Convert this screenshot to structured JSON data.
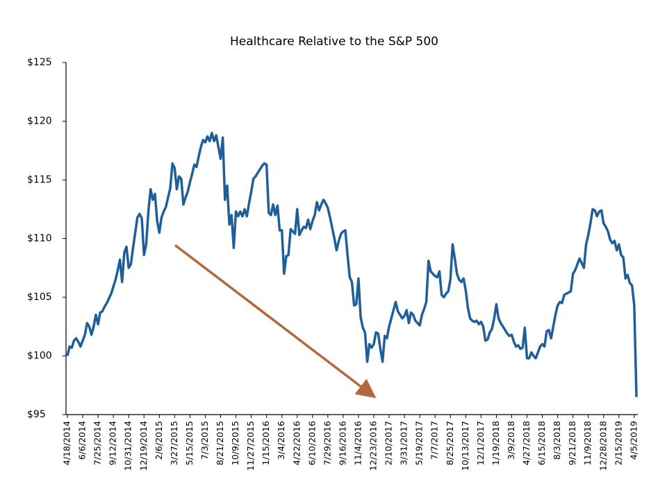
{
  "chart_data": {
    "type": "line",
    "title": "Healthcare Relative to the S&P 500",
    "categories": [
      "4/18/2014",
      null,
      null,
      null,
      null,
      null,
      null,
      "6/6/2014",
      null,
      null,
      null,
      null,
      null,
      null,
      "7/25/2014",
      null,
      null,
      null,
      null,
      null,
      null,
      "9/12/2014",
      null,
      null,
      null,
      null,
      null,
      null,
      "10/31/2014",
      null,
      null,
      null,
      null,
      null,
      null,
      "12/19/2014",
      null,
      null,
      null,
      null,
      null,
      null,
      "2/6/2015",
      null,
      null,
      null,
      null,
      null,
      null,
      "3/27/2015",
      null,
      null,
      null,
      null,
      null,
      null,
      "5/15/2015",
      null,
      null,
      null,
      null,
      null,
      null,
      "7/3/2015",
      null,
      null,
      null,
      null,
      null,
      null,
      "8/21/2015",
      null,
      null,
      null,
      null,
      null,
      null,
      "10/9/2015",
      null,
      null,
      null,
      null,
      null,
      null,
      "11/27/2015",
      null,
      null,
      null,
      null,
      null,
      null,
      "1/15/2016",
      null,
      null,
      null,
      null,
      null,
      null,
      "3/4/2016",
      null,
      null,
      null,
      null,
      null,
      null,
      "4/22/2016",
      null,
      null,
      null,
      null,
      null,
      null,
      "6/10/2016",
      null,
      null,
      null,
      null,
      null,
      null,
      "7/29/2016",
      null,
      null,
      null,
      null,
      null,
      null,
      "9/16/2016",
      null,
      null,
      null,
      null,
      null,
      null,
      "11/4/2016",
      null,
      null,
      null,
      null,
      null,
      null,
      "12/23/2016",
      null,
      null,
      null,
      null,
      null,
      null,
      "2/10/2017",
      null,
      null,
      null,
      null,
      null,
      null,
      "3/31/2017",
      null,
      null,
      null,
      null,
      null,
      null,
      "5/19/2017",
      null,
      null,
      null,
      null,
      null,
      null,
      "7/7/2017",
      null,
      null,
      null,
      null,
      null,
      null,
      "8/25/2017",
      null,
      null,
      null,
      null,
      null,
      null,
      "10/13/2017",
      null,
      null,
      null,
      null,
      null,
      null,
      "12/1/2017",
      null,
      null,
      null,
      null,
      null,
      null,
      "1/19/2018",
      null,
      null,
      null,
      null,
      null,
      null,
      "3/9/2018",
      null,
      null,
      null,
      null,
      null,
      null,
      "4/27/2018",
      null,
      null,
      null,
      null,
      null,
      null,
      "6/15/2018",
      null,
      null,
      null,
      null,
      null,
      null,
      "8/3/2018",
      null,
      null,
      null,
      null,
      null,
      null,
      "9/21/2018",
      null,
      null,
      null,
      null,
      null,
      null,
      "11/9/2018",
      null,
      null,
      null,
      null,
      null,
      null,
      "12/28/2018",
      null,
      null,
      null,
      null,
      null,
      null,
      "2/15/2019",
      null,
      null,
      null,
      null,
      null,
      null,
      "4/5/2019",
      null
    ],
    "values": [
      100.0,
      100.8,
      100.7,
      101.3,
      101.5,
      101.2,
      100.8,
      101.3,
      101.8,
      102.8,
      102.5,
      101.8,
      102.5,
      103.5,
      102.7,
      103.7,
      103.8,
      104.2,
      104.5,
      104.9,
      105.3,
      105.9,
      106.5,
      107.3,
      108.2,
      106.3,
      108.8,
      109.3,
      107.5,
      107.8,
      109.2,
      110.5,
      111.8,
      112.1,
      111.7,
      108.6,
      109.5,
      112.3,
      114.2,
      113.3,
      113.8,
      111.5,
      110.5,
      111.8,
      112.3,
      112.7,
      113.5,
      114.3,
      116.4,
      116.0,
      114.2,
      115.3,
      115.1,
      112.9,
      113.5,
      114.0,
      114.8,
      115.5,
      116.3,
      116.1,
      117.0,
      117.8,
      118.4,
      118.2,
      118.7,
      118.3,
      119.0,
      118.3,
      118.8,
      117.8,
      116.8,
      118.6,
      113.3,
      114.5,
      111.2,
      112.0,
      109.2,
      112.3,
      111.9,
      112.3,
      111.9,
      112.5,
      111.9,
      113.0,
      114.0,
      115.1,
      115.3,
      115.6,
      115.9,
      116.2,
      116.4,
      116.3,
      112.2,
      112.0,
      112.9,
      112.0,
      112.8,
      110.7,
      110.7,
      107.0,
      108.5,
      108.6,
      110.8,
      110.6,
      110.4,
      112.5,
      110.3,
      110.7,
      111.0,
      110.9,
      111.6,
      110.8,
      111.5,
      112.0,
      113.1,
      112.4,
      112.9,
      113.3,
      113.0,
      112.6,
      111.8,
      110.9,
      110.0,
      109.0,
      109.8,
      110.4,
      110.6,
      110.7,
      108.6,
      106.7,
      106.3,
      104.3,
      104.4,
      106.6,
      103.3,
      102.4,
      102.0,
      99.5,
      101.0,
      100.7,
      101.0,
      102.0,
      101.9,
      100.6,
      99.5,
      101.7,
      101.5,
      102.5,
      103.2,
      103.9,
      104.6,
      103.8,
      103.5,
      103.2,
      103.4,
      103.9,
      102.8,
      103.7,
      103.5,
      103.0,
      102.8,
      102.6,
      103.5,
      104.0,
      104.6,
      108.1,
      107.2,
      107.0,
      106.8,
      106.7,
      107.2,
      105.2,
      105.0,
      105.3,
      105.5,
      106.5,
      109.5,
      108.3,
      107.0,
      106.5,
      106.3,
      106.6,
      105.6,
      104.1,
      103.2,
      103.0,
      102.9,
      103.0,
      102.7,
      102.9,
      102.5,
      101.3,
      101.4,
      102.0,
      102.3,
      103.2,
      104.4,
      103.2,
      102.8,
      102.5,
      102.2,
      101.9,
      101.7,
      101.8,
      101.2,
      100.8,
      100.9,
      100.6,
      100.7,
      102.4,
      99.8,
      99.8,
      100.3,
      100.0,
      99.8,
      100.3,
      100.8,
      101.0,
      100.8,
      102.1,
      102.2,
      101.5,
      102.5,
      103.5,
      104.3,
      104.6,
      104.5,
      105.2,
      105.3,
      105.4,
      105.5,
      107.0,
      107.3,
      107.8,
      108.3,
      107.9,
      107.5,
      109.5,
      110.3,
      111.3,
      112.5,
      112.4,
      111.9,
      112.3,
      112.4,
      111.3,
      111.0,
      110.6,
      109.9,
      109.6,
      109.8,
      109.0,
      109.5,
      108.6,
      108.4,
      106.6,
      106.9,
      106.2,
      106.0,
      104.3,
      96.5
    ],
    "color": "#1f5f99",
    "ylim": [
      95,
      125
    ],
    "yticks": [
      {
        "value": 95,
        "label": "$95"
      },
      {
        "value": 100,
        "label": "$100"
      },
      {
        "value": 105,
        "label": "$105"
      },
      {
        "value": 110,
        "label": "$110"
      },
      {
        "value": 115,
        "label": "$115"
      },
      {
        "value": 120,
        "label": "$120"
      },
      {
        "value": 125,
        "label": "$125"
      }
    ],
    "grid": false
  }
}
